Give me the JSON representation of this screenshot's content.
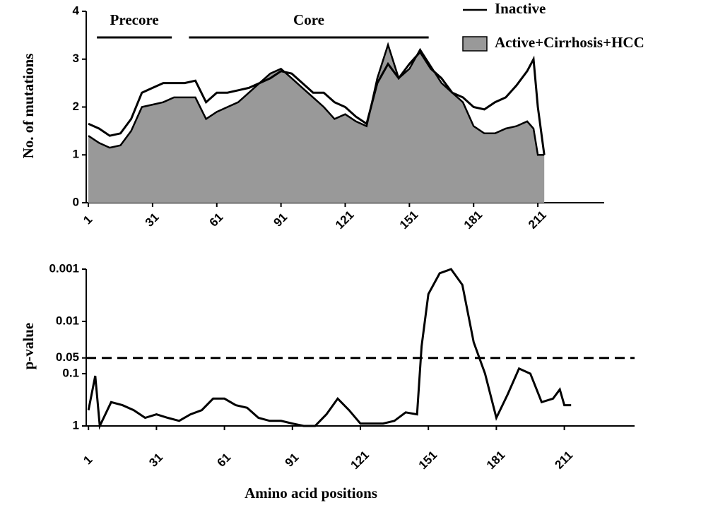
{
  "chart_data": [
    {
      "type": "area",
      "y_label": "No. of mutations",
      "x": [
        1,
        6,
        11,
        16,
        21,
        26,
        31,
        36,
        41,
        46,
        51,
        56,
        61,
        66,
        71,
        76,
        81,
        86,
        91,
        96,
        101,
        106,
        111,
        116,
        121,
        126,
        131,
        136,
        141,
        146,
        151,
        156,
        161,
        166,
        171,
        176,
        181,
        186,
        191,
        196,
        201,
        206,
        209,
        211,
        214
      ],
      "series": [
        {
          "name": "Inactive",
          "style": "line",
          "color": "#000000",
          "values": [
            1.65,
            1.55,
            1.4,
            1.45,
            1.75,
            2.3,
            2.4,
            2.5,
            2.5,
            2.5,
            2.55,
            2.1,
            2.3,
            2.3,
            2.35,
            2.4,
            2.5,
            2.6,
            2.75,
            2.7,
            2.5,
            2.3,
            2.3,
            2.1,
            2.0,
            1.8,
            1.65,
            2.5,
            2.9,
            2.6,
            2.9,
            3.15,
            2.8,
            2.6,
            2.3,
            2.2,
            2.0,
            1.95,
            2.1,
            2.2,
            2.45,
            2.75,
            3.0,
            2.0,
            1.0
          ]
        },
        {
          "name": "Active+Cirrhosis+HCC",
          "style": "area",
          "color": "#999999",
          "values": [
            1.4,
            1.25,
            1.15,
            1.2,
            1.5,
            2.0,
            2.05,
            2.1,
            2.2,
            2.2,
            2.2,
            1.75,
            1.9,
            2.0,
            2.1,
            2.3,
            2.5,
            2.7,
            2.8,
            2.6,
            2.4,
            2.2,
            2.0,
            1.75,
            1.85,
            1.7,
            1.6,
            2.6,
            3.3,
            2.6,
            2.8,
            3.2,
            2.85,
            2.5,
            2.3,
            2.1,
            1.6,
            1.45,
            1.45,
            1.55,
            1.6,
            1.7,
            1.55,
            1.0,
            1.0
          ]
        }
      ],
      "annotations": [
        {
          "text": "Precore",
          "x": [
            5,
            40
          ]
        },
        {
          "text": "Core",
          "x": [
            48,
            160
          ]
        }
      ],
      "xlim": [
        0,
        242
      ],
      "xticks": [
        1,
        31,
        61,
        91,
        121,
        151,
        181,
        211
      ],
      "ylim": [
        0,
        4
      ],
      "yticks": [
        0,
        1,
        2,
        3,
        4
      ],
      "legend": "top-right"
    },
    {
      "type": "line",
      "x_label": "Amino acid positions",
      "y_label": "p-value",
      "x": [
        1,
        4,
        6,
        11,
        16,
        21,
        26,
        31,
        36,
        41,
        46,
        51,
        56,
        61,
        66,
        71,
        76,
        81,
        86,
        91,
        96,
        101,
        106,
        111,
        116,
        121,
        126,
        131,
        136,
        141,
        146,
        148,
        151,
        156,
        161,
        166,
        171,
        176,
        181,
        186,
        191,
        196,
        201,
        206,
        209,
        211,
        214
      ],
      "series": [
        {
          "color": "#000000",
          "values": [
            0.5,
            0.11,
            1,
            0.35,
            0.4,
            0.5,
            0.7,
            0.6,
            0.7,
            0.8,
            0.6,
            0.5,
            0.3,
            0.3,
            0.4,
            0.45,
            0.7,
            0.8,
            0.8,
            0.9,
            1,
            1,
            0.6,
            0.3,
            0.5,
            0.9,
            0.9,
            0.9,
            0.8,
            0.55,
            0.6,
            0.03,
            0.003,
            0.0012,
            0.001,
            0.002,
            0.025,
            0.1,
            0.7,
            0.25,
            0.08,
            0.1,
            0.35,
            0.3,
            0.2,
            0.4,
            0.4
          ]
        }
      ],
      "hline": 0.05,
      "xlim": [
        0,
        242
      ],
      "xticks": [
        1,
        31,
        61,
        91,
        121,
        151,
        181,
        211
      ],
      "ylim": [
        1,
        0.001
      ],
      "yticks": [
        0.001,
        0.01,
        0.05,
        0.1,
        1
      ],
      "ylog": true
    }
  ]
}
